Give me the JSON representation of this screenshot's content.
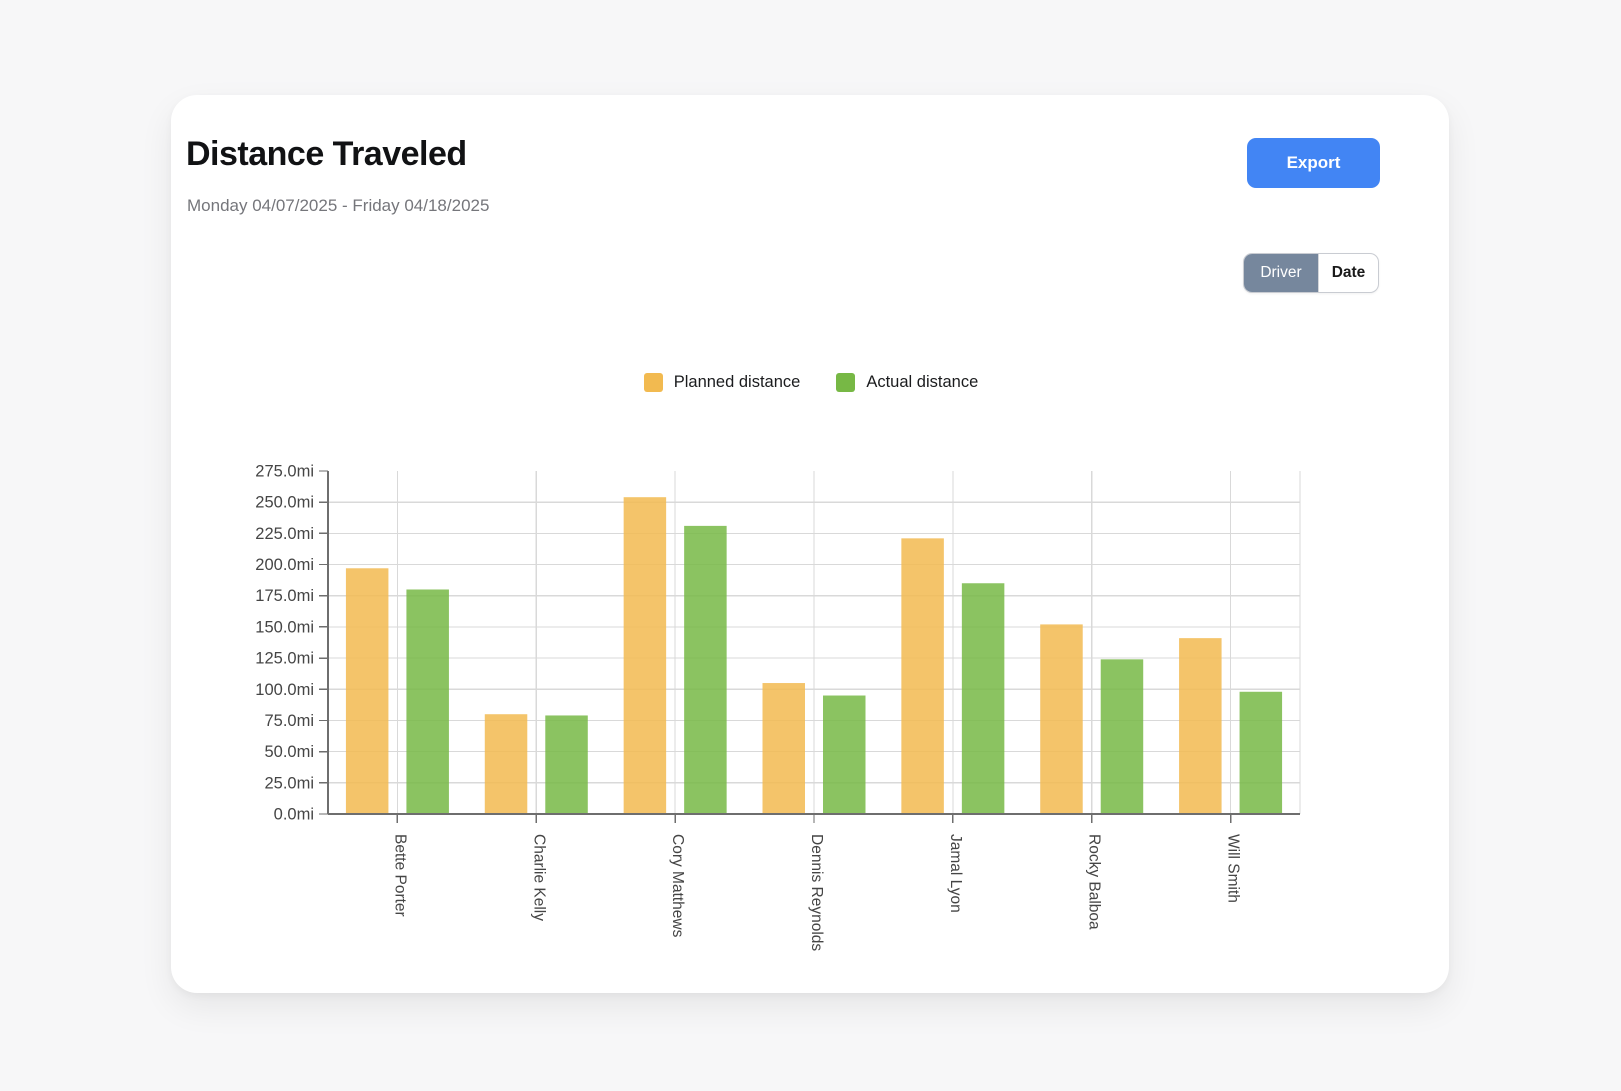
{
  "header": {
    "title": "Distance Traveled",
    "date_range": "Monday 04/07/2025 - Friday 04/18/2025"
  },
  "toolbar": {
    "export_label": "Export",
    "group_toggle": {
      "options": [
        "Driver",
        "Date"
      ],
      "selected": "Driver"
    }
  },
  "legend": {
    "items": [
      {
        "label": "Planned distance",
        "color": "#F2BA50"
      },
      {
        "label": "Actual distance",
        "color": "#77B845"
      }
    ]
  },
  "colors": {
    "export_button": "#4285F4",
    "toggle_active_bg": "#76879D",
    "planned_bar": "#F2BA50",
    "actual_bar": "#77B845",
    "axis": "#6E6E6E",
    "grid": "#D9D9D9",
    "tick_label": "#454545"
  },
  "chart_data": {
    "type": "bar",
    "title": "Distance Traveled",
    "unit": "mi",
    "categories": [
      "Bette Porter",
      "Charlie Kelly",
      "Cory Matthews",
      "Dennis Reynolds",
      "Jamal Lyon",
      "Rocky Balboa",
      "Will Smith"
    ],
    "series": [
      {
        "name": "Planned distance",
        "color": "#F2BA50",
        "values": [
          197,
          80,
          254,
          105,
          221,
          152,
          141
        ]
      },
      {
        "name": "Actual distance",
        "color": "#77B845",
        "values": [
          180,
          79,
          231,
          95,
          185,
          124,
          98
        ]
      }
    ],
    "ylim": [
      0,
      275
    ],
    "ytick_step": 25,
    "ytick_labels": [
      "0.0mi",
      "25.0mi",
      "50.0mi",
      "75.0mi",
      "100.0mi",
      "125.0mi",
      "150.0mi",
      "175.0mi",
      "200.0mi",
      "225.0mi",
      "250.0mi",
      "275.0mi"
    ],
    "grid": true,
    "legend_position": "top",
    "bar_opacity": 0.85
  }
}
